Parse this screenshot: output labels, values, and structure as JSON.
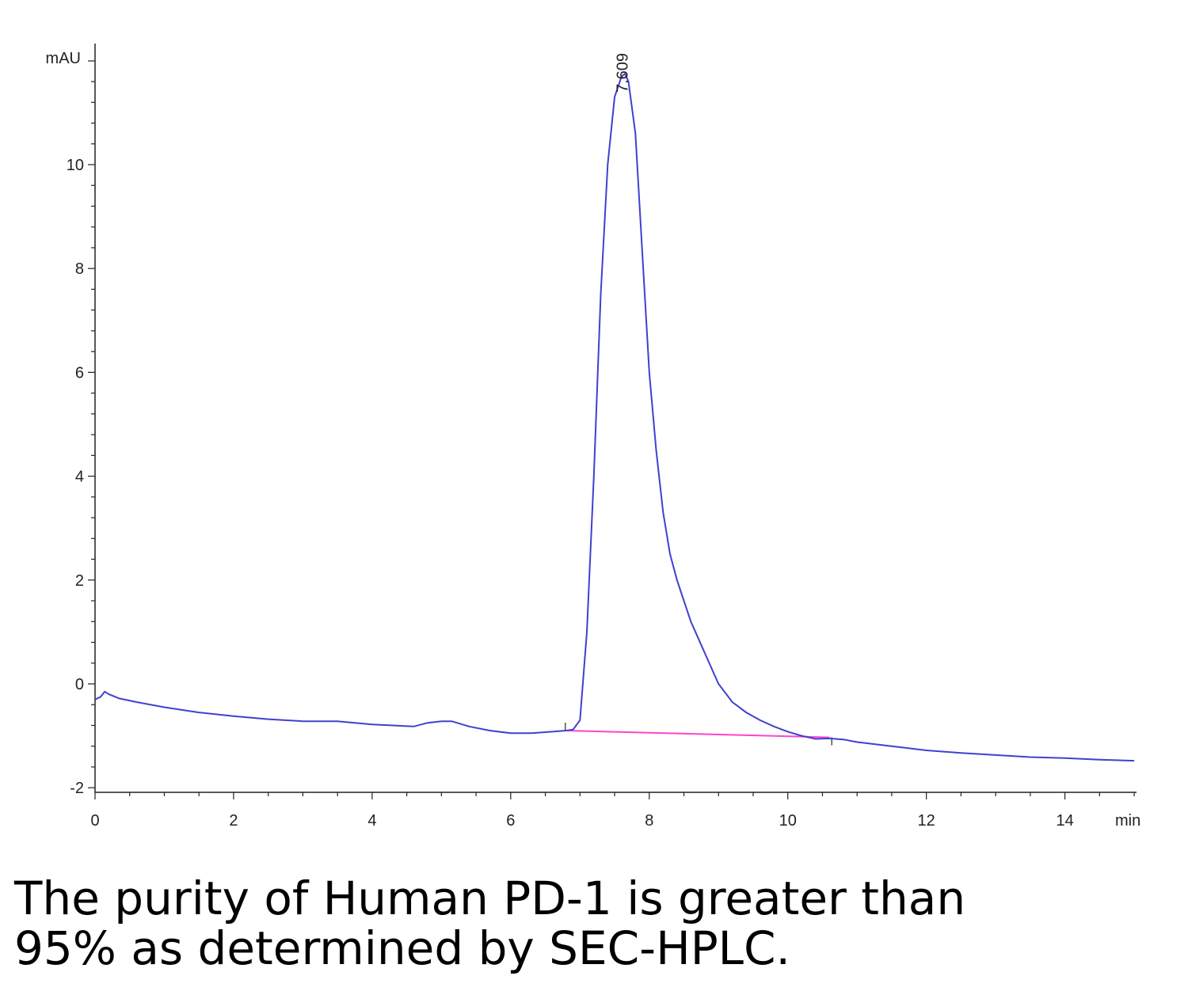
{
  "chart_data": {
    "type": "line",
    "ylabel": "mAU",
    "xlabel": "min",
    "xlim": [
      0,
      15
    ],
    "ylim": [
      -2,
      12
    ],
    "x_ticks": [
      0,
      2,
      4,
      6,
      8,
      10,
      12,
      14
    ],
    "y_ticks": [
      -2,
      0,
      2,
      4,
      6,
      8,
      10
    ],
    "peak_label": "7.609",
    "colors": {
      "trace": "#4040d0",
      "baseline": "#ff44cc",
      "axis": "#222222"
    },
    "series": [
      {
        "x": [
          0,
          0.08,
          0.14,
          0.2,
          0.35,
          0.6,
          1.0,
          1.5,
          2.0,
          2.5,
          3.0,
          3.5,
          4.0,
          4.3,
          4.6,
          4.8,
          5.0,
          5.15,
          5.4,
          5.7,
          6.0,
          6.3,
          6.6,
          6.8,
          6.9,
          7.0,
          7.1,
          7.2,
          7.3,
          7.4,
          7.5,
          7.6,
          7.65,
          7.7,
          7.8,
          7.9,
          8.0,
          8.1,
          8.2,
          8.3,
          8.4,
          8.5,
          8.6,
          8.8,
          9.0,
          9.2,
          9.4,
          9.6,
          9.8,
          10.0,
          10.2,
          10.4,
          10.6,
          10.8,
          11.0,
          11.5,
          12.0,
          12.5,
          13.0,
          13.5,
          14.0,
          14.5,
          15.0
        ],
        "y": [
          -0.3,
          -0.25,
          -0.15,
          -0.2,
          -0.28,
          -0.35,
          -0.45,
          -0.55,
          -0.62,
          -0.68,
          -0.72,
          -0.72,
          -0.78,
          -0.8,
          -0.82,
          -0.75,
          -0.72,
          -0.72,
          -0.82,
          -0.9,
          -0.95,
          -0.95,
          -0.92,
          -0.9,
          -0.88,
          -0.7,
          1.0,
          4.0,
          7.5,
          10.0,
          11.3,
          11.7,
          11.75,
          11.6,
          10.6,
          8.3,
          6.0,
          4.5,
          3.3,
          2.5,
          2.0,
          1.6,
          1.2,
          0.6,
          0.0,
          -0.35,
          -0.55,
          -0.7,
          -0.82,
          -0.92,
          -1.0,
          -1.06,
          -1.05,
          -1.07,
          -1.12,
          -1.2,
          -1.28,
          -1.33,
          -1.37,
          -1.41,
          -1.43,
          -1.46,
          -1.48
        ]
      }
    ],
    "baseline": {
      "x": [
        6.8,
        10.6
      ],
      "y": [
        -0.9,
        -1.03
      ]
    }
  },
  "caption": {
    "line1": "The purity of Human PD-1 is greater than",
    "line2": "95% as determined by SEC-HPLC."
  }
}
